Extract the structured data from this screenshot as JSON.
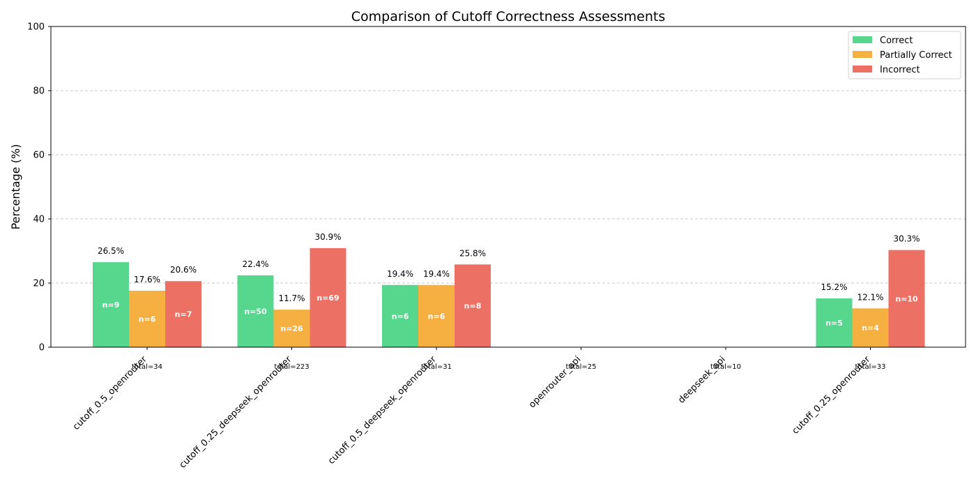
{
  "chart_data": {
    "type": "bar",
    "title": "Comparison of Cutoff Correctness Assessments",
    "xlabel": "",
    "ylabel": "Percentage (%)",
    "ylim": [
      0,
      100
    ],
    "yticks": [
      "0",
      "20",
      "40",
      "60",
      "80",
      "100"
    ],
    "grid": "y-dashed",
    "legend_position": "top-right",
    "categories": [
      "cutoff_0.5_openrouter",
      "cutoff_0.25_deepseek_openrouter",
      "cutoff_0.5_deepseek_openrouter",
      "openrouter_api",
      "deepseek_api",
      "cutoff_0.25_openrouter"
    ],
    "totals": [
      "total=34",
      "total=223",
      "total=31",
      "total=25",
      "total=10",
      "total=33"
    ],
    "series": [
      {
        "name": "Correct",
        "color": "#57d68d",
        "values": [
          26.5,
          22.4,
          19.4,
          0,
          0,
          15.2
        ],
        "value_labels": [
          "26.5%",
          "22.4%",
          "19.4%",
          null,
          null,
          "15.2%"
        ],
        "counts": [
          "n=9",
          "n=50",
          "n=6",
          null,
          null,
          "n=5"
        ]
      },
      {
        "name": "Partially Correct",
        "color": "#f5b041",
        "values": [
          17.6,
          11.7,
          19.4,
          0,
          0,
          12.1
        ],
        "value_labels": [
          "17.6%",
          "11.7%",
          "19.4%",
          null,
          null,
          "12.1%"
        ],
        "counts": [
          "n=6",
          "n=26",
          "n=6",
          null,
          null,
          "n=4"
        ]
      },
      {
        "name": "Incorrect",
        "color": "#ec7063",
        "values": [
          20.6,
          30.9,
          25.8,
          0,
          0,
          30.3
        ],
        "value_labels": [
          "20.6%",
          "30.9%",
          "25.8%",
          null,
          null,
          "30.3%"
        ],
        "counts": [
          "n=7",
          "n=69",
          "n=8",
          null,
          null,
          "n=10"
        ]
      }
    ]
  }
}
